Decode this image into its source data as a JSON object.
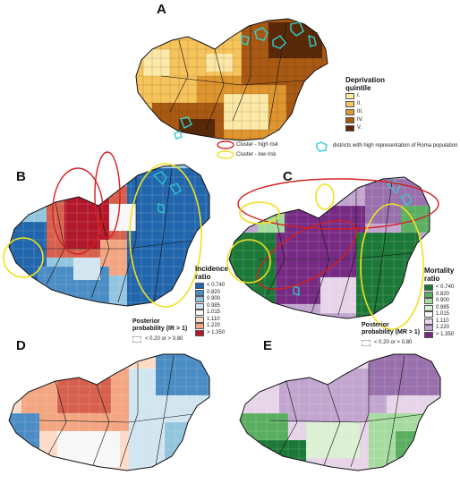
{
  "panels": {
    "a": {
      "letter": "A"
    },
    "b": {
      "letter": "B"
    },
    "c": {
      "letter": "C"
    },
    "d": {
      "letter": "D"
    },
    "e": {
      "letter": "E"
    }
  },
  "deprivation_legend": {
    "title_line1": "Deprivation",
    "title_line2": "quintile",
    "items": [
      {
        "label": "I.",
        "color": "#fce9a8"
      },
      {
        "label": "II.",
        "color": "#f6c45c"
      },
      {
        "label": "III.",
        "color": "#df9630"
      },
      {
        "label": "IV.",
        "color": "#a85a14"
      },
      {
        "label": "V.",
        "color": "#5a2a08"
      }
    ]
  },
  "cluster_legend": {
    "high_risk": "Cluster - high risk",
    "low_risk": "Cluster - low risk",
    "roma": "districts with high representation of Roma population",
    "high_color": "#d42020",
    "low_color": "#f0e020",
    "roma_color": "#30d0d0"
  },
  "incidence_legend": {
    "title_line1": "Incidence",
    "title_line2": "ratio",
    "items": [
      {
        "label": "< 0.740",
        "color": "#2166ac"
      },
      {
        "label": "0.820",
        "color": "#4a8cc4"
      },
      {
        "label": "0.900",
        "color": "#92c5de"
      },
      {
        "label": "0.985",
        "color": "#d1e5f0"
      },
      {
        "label": "1.015",
        "color": "#f7f7f7"
      },
      {
        "label": "1.110",
        "color": "#fddbc7"
      },
      {
        "label": "1.220",
        "color": "#f4a582"
      },
      {
        "label": "> 1.350",
        "color": "#b2182b"
      }
    ],
    "pp_title_line1": "Posterior",
    "pp_title_line2": "probability (IR > 1)",
    "pp_item": "< 0.20 or > 0.80"
  },
  "mortality_legend": {
    "title_line1": "Mortality",
    "title_line2": "ratio",
    "items": [
      {
        "label": "< 0.740",
        "color": "#1b7837"
      },
      {
        "label": "0.820",
        "color": "#5aae61"
      },
      {
        "label": "0.900",
        "color": "#a6dba0"
      },
      {
        "label": "0.985",
        "color": "#d9f0d3"
      },
      {
        "label": "1.015",
        "color": "#f7f7f7"
      },
      {
        "label": "1.110",
        "color": "#e7d4e8"
      },
      {
        "label": "1.220",
        "color": "#c2a5cf"
      },
      {
        "label": "> 1.350",
        "color": "#762a83"
      }
    ],
    "pp_title_line1": "Posterior",
    "pp_title_line2": "probability (MR > 1)",
    "pp_item": "< 0.20 or > 0.80"
  }
}
